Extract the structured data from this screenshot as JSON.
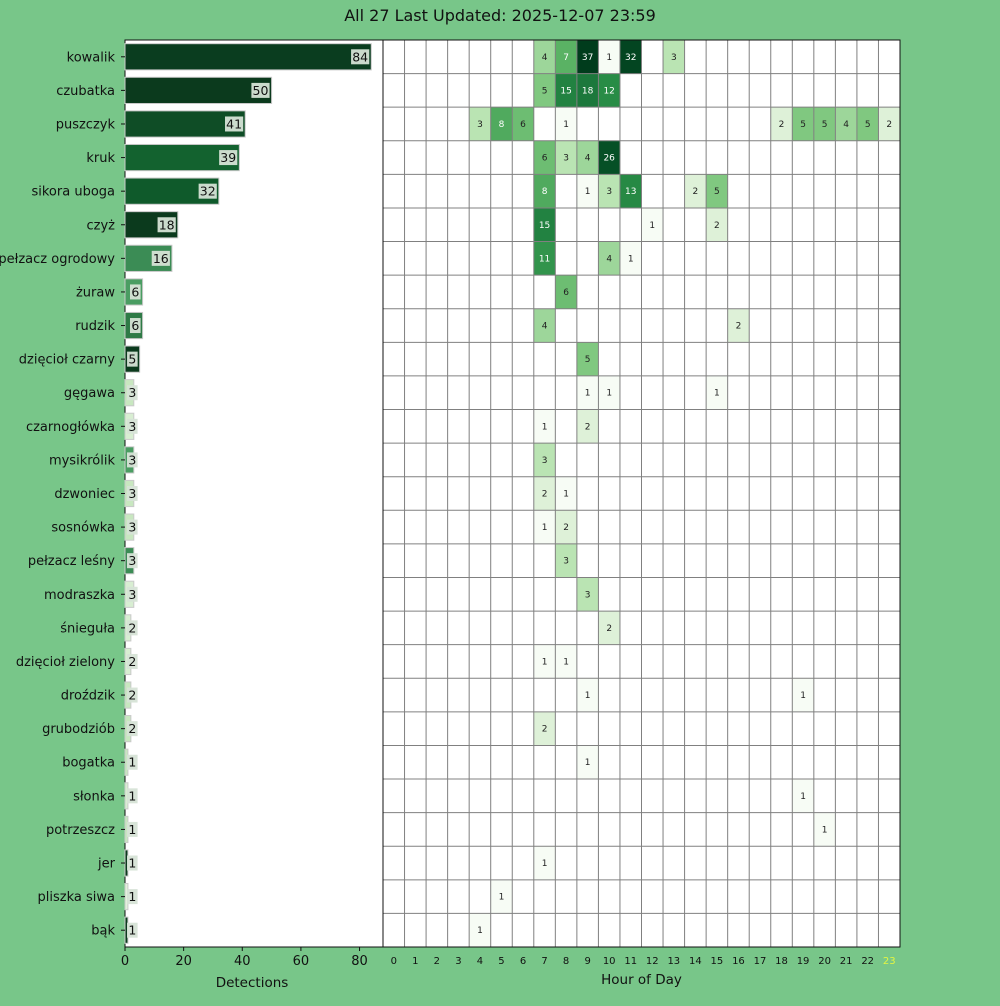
{
  "title": "All 27 Last Updated: 2025-12-07 23:59",
  "chart_data": [
    {
      "type": "bar",
      "orientation": "horizontal",
      "categories": [
        "kowalik",
        "czubatka",
        "puszczyk",
        "kruk",
        "sikora uboga",
        "czyż",
        "pełzacz ogrodowy",
        "żuraw",
        "rudzik",
        "dzięcioł czarny",
        "gęgawa",
        "czarnogłówka",
        "mysikrólik",
        "dzwoniec",
        "sosnówka",
        "pełzacz leśny",
        "modraszka",
        "śnieguła",
        "dzięcioł zielony",
        "droździk",
        "grubodziób",
        "bogatka",
        "słonka",
        "potrzeszcz",
        "jer",
        "pliszka siwa",
        "bąk"
      ],
      "values": [
        84,
        50,
        41,
        39,
        32,
        18,
        16,
        6,
        6,
        5,
        3,
        3,
        3,
        3,
        3,
        3,
        3,
        2,
        2,
        2,
        2,
        1,
        1,
        1,
        1,
        1,
        1
      ],
      "bar_colors": [
        "#0a3d1f",
        "#0b3a1d",
        "#0f4d26",
        "#13622f",
        "#0f5a2b",
        "#0b3a1d",
        "#3b8c55",
        "#4a9d62",
        "#2e7a46",
        "#0b3a1d",
        "#c8e7c0",
        "#d8eed2",
        "#4a9d62",
        "#c8e7c0",
        "#c8e7c0",
        "#3b8c55",
        "#d8eed2",
        "#d8eed2",
        "#d8eed2",
        "#c8e7c0",
        "#c8e7c0",
        "#c8e7c0",
        "#d8eed2",
        "#c8e7c0",
        "#0b3a1d",
        "#e2f2dc",
        "#0b3a1d"
      ],
      "xlabel": "Detections",
      "xticks": [
        0,
        20,
        40,
        60,
        80
      ],
      "xlim": [
        0,
        88
      ]
    },
    {
      "type": "heatmap",
      "rows": [
        "kowalik",
        "czubatka",
        "puszczyk",
        "kruk",
        "sikora uboga",
        "czyż",
        "pełzacz ogrodowy",
        "żuraw",
        "rudzik",
        "dzięcioł czarny",
        "gęgawa",
        "czarnogłówka",
        "mysikrólik",
        "dzwoniec",
        "sosnówka",
        "pełzacz leśny",
        "modraszka",
        "śnieguła",
        "dzięcioł zielony",
        "droździk",
        "grubodziób",
        "bogatka",
        "słonka",
        "potrzeszcz",
        "jer",
        "pliszka siwa",
        "bąk"
      ],
      "columns": [
        "0",
        "1",
        "2",
        "3",
        "4",
        "5",
        "6",
        "7",
        "8",
        "9",
        "10",
        "11",
        "12",
        "13",
        "14",
        "15",
        "16",
        "17",
        "18",
        "19",
        "20",
        "21",
        "22",
        "23"
      ],
      "highlight_column": "23",
      "highlight_color": "#e3f542",
      "xlabel": "Hour of Day",
      "cells": [
        {
          "r": 0,
          "c": 7,
          "v": 4
        },
        {
          "r": 0,
          "c": 8,
          "v": 7
        },
        {
          "r": 0,
          "c": 9,
          "v": 37
        },
        {
          "r": 0,
          "c": 10,
          "v": 1
        },
        {
          "r": 0,
          "c": 11,
          "v": 32
        },
        {
          "r": 0,
          "c": 13,
          "v": 3
        },
        {
          "r": 1,
          "c": 7,
          "v": 5
        },
        {
          "r": 1,
          "c": 8,
          "v": 15
        },
        {
          "r": 1,
          "c": 9,
          "v": 18
        },
        {
          "r": 1,
          "c": 10,
          "v": 12
        },
        {
          "r": 2,
          "c": 4,
          "v": 3
        },
        {
          "r": 2,
          "c": 5,
          "v": 8
        },
        {
          "r": 2,
          "c": 6,
          "v": 6
        },
        {
          "r": 2,
          "c": 8,
          "v": 1
        },
        {
          "r": 2,
          "c": 18,
          "v": 2
        },
        {
          "r": 2,
          "c": 19,
          "v": 5
        },
        {
          "r": 2,
          "c": 20,
          "v": 5
        },
        {
          "r": 2,
          "c": 21,
          "v": 4
        },
        {
          "r": 2,
          "c": 22,
          "v": 5
        },
        {
          "r": 2,
          "c": 23,
          "v": 2
        },
        {
          "r": 3,
          "c": 7,
          "v": 6
        },
        {
          "r": 3,
          "c": 8,
          "v": 3
        },
        {
          "r": 3,
          "c": 9,
          "v": 4
        },
        {
          "r": 3,
          "c": 10,
          "v": 26
        },
        {
          "r": 4,
          "c": 7,
          "v": 8
        },
        {
          "r": 4,
          "c": 9,
          "v": 1
        },
        {
          "r": 4,
          "c": 10,
          "v": 3
        },
        {
          "r": 4,
          "c": 11,
          "v": 13
        },
        {
          "r": 4,
          "c": 14,
          "v": 2
        },
        {
          "r": 4,
          "c": 15,
          "v": 5
        },
        {
          "r": 5,
          "c": 7,
          "v": 15
        },
        {
          "r": 5,
          "c": 12,
          "v": 1
        },
        {
          "r": 5,
          "c": 15,
          "v": 2
        },
        {
          "r": 6,
          "c": 7,
          "v": 11
        },
        {
          "r": 6,
          "c": 10,
          "v": 4
        },
        {
          "r": 6,
          "c": 11,
          "v": 1
        },
        {
          "r": 7,
          "c": 8,
          "v": 6
        },
        {
          "r": 8,
          "c": 7,
          "v": 4
        },
        {
          "r": 8,
          "c": 16,
          "v": 2
        },
        {
          "r": 9,
          "c": 9,
          "v": 5
        },
        {
          "r": 10,
          "c": 9,
          "v": 1
        },
        {
          "r": 10,
          "c": 10,
          "v": 1
        },
        {
          "r": 10,
          "c": 15,
          "v": 1
        },
        {
          "r": 11,
          "c": 7,
          "v": 1
        },
        {
          "r": 11,
          "c": 9,
          "v": 2
        },
        {
          "r": 12,
          "c": 7,
          "v": 3
        },
        {
          "r": 13,
          "c": 7,
          "v": 2
        },
        {
          "r": 13,
          "c": 8,
          "v": 1
        },
        {
          "r": 14,
          "c": 7,
          "v": 1
        },
        {
          "r": 14,
          "c": 8,
          "v": 2
        },
        {
          "r": 15,
          "c": 8,
          "v": 3
        },
        {
          "r": 16,
          "c": 9,
          "v": 3
        },
        {
          "r": 17,
          "c": 10,
          "v": 2
        },
        {
          "r": 18,
          "c": 7,
          "v": 1
        },
        {
          "r": 18,
          "c": 8,
          "v": 1
        },
        {
          "r": 19,
          "c": 9,
          "v": 1
        },
        {
          "r": 19,
          "c": 19,
          "v": 1
        },
        {
          "r": 20,
          "c": 7,
          "v": 2
        },
        {
          "r": 21,
          "c": 9,
          "v": 1
        },
        {
          "r": 22,
          "c": 19,
          "v": 1
        },
        {
          "r": 23,
          "c": 20,
          "v": 1
        },
        {
          "r": 24,
          "c": 7,
          "v": 1
        },
        {
          "r": 25,
          "c": 5,
          "v": 1
        },
        {
          "r": 26,
          "c": 4,
          "v": 1
        }
      ]
    }
  ]
}
